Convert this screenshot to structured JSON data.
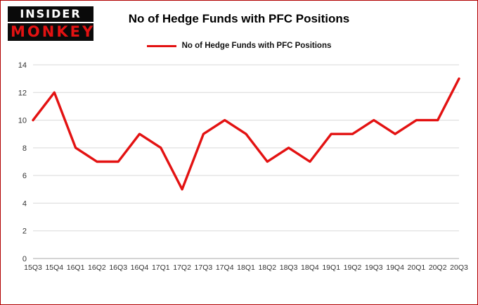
{
  "logo": {
    "line1": "INSIDER",
    "line2": "MONKEY"
  },
  "header": {
    "title": "No of Hedge Funds with PFC Positions"
  },
  "legend": {
    "label": "No of Hedge Funds with PFC Positions",
    "color": "#e31212"
  },
  "chart_data": {
    "type": "line",
    "title": "No of Hedge Funds with PFC Positions",
    "xlabel": "",
    "ylabel": "",
    "categories": [
      "15Q3",
      "15Q4",
      "16Q1",
      "16Q2",
      "16Q3",
      "16Q4",
      "17Q1",
      "17Q2",
      "17Q3",
      "17Q4",
      "18Q1",
      "18Q2",
      "18Q3",
      "18Q4",
      "19Q1",
      "19Q2",
      "19Q3",
      "19Q4",
      "20Q1",
      "20Q2",
      "20Q3"
    ],
    "values": [
      10,
      12,
      8,
      7,
      7,
      9,
      8,
      5,
      9,
      10,
      9,
      7,
      8,
      7,
      9,
      9,
      10,
      9,
      10,
      10,
      13
    ],
    "ylim": [
      0,
      14
    ],
    "ytick_step": 2,
    "line_color": "#e31212",
    "grid": true,
    "legend_position": "top"
  },
  "colors": {
    "frame_border": "#b20000",
    "grid": "#d9d9d9",
    "axis_line": "#aaaaaa",
    "axis_text": "#333333"
  }
}
